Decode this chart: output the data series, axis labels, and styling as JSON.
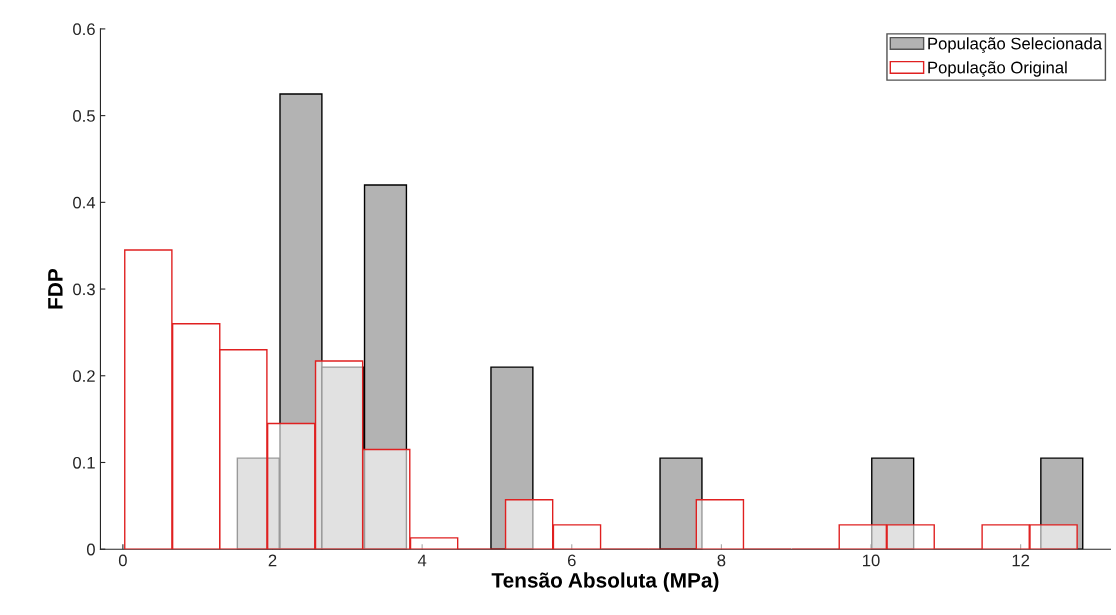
{
  "chart_data": {
    "type": "bar",
    "xlabel": "Tensão Absoluta (MPa)",
    "ylabel": "FDP",
    "xlim": [
      -0.3,
      13.2
    ],
    "xticks": [
      0,
      2,
      4,
      6,
      8,
      10,
      12
    ],
    "ylim": [
      0,
      0.6
    ],
    "yticks": [
      0,
      0.1,
      0.2,
      0.3,
      0.4,
      0.5,
      0.6
    ],
    "legend": "top right",
    "series": [
      {
        "name": "População Selecionada",
        "color": "#b3b3b3",
        "x": [
          1.81,
          2.38,
          2.94,
          3.51,
          4.07,
          4.64,
          5.2,
          5.77,
          6.33,
          6.9,
          7.46,
          8.03,
          8.59,
          9.16,
          9.72,
          10.29,
          10.85,
          11.42,
          11.98,
          12.55
        ],
        "values": [
          0.105,
          0.525,
          0.21,
          0.42,
          0,
          0,
          0.21,
          0,
          0,
          0,
          0.105,
          0,
          0,
          0,
          0,
          0.105,
          0,
          0,
          0,
          0.105
        ]
      },
      {
        "name": "População Original",
        "color": "#e02020",
        "x": [
          0.34,
          0.98,
          1.61,
          2.25,
          2.89,
          3.52,
          4.16,
          4.79,
          5.43,
          6.07,
          6.71,
          7.34,
          7.98,
          8.62,
          9.26,
          9.89,
          10.53,
          11.17,
          11.8,
          12.44
        ],
        "values": [
          0.345,
          0.26,
          0.23,
          0.145,
          0.217,
          0.115,
          0.013,
          0,
          0.057,
          0.028,
          0,
          0,
          0.057,
          0,
          0,
          0.028,
          0.028,
          0,
          0.028,
          0.028
        ]
      }
    ]
  }
}
